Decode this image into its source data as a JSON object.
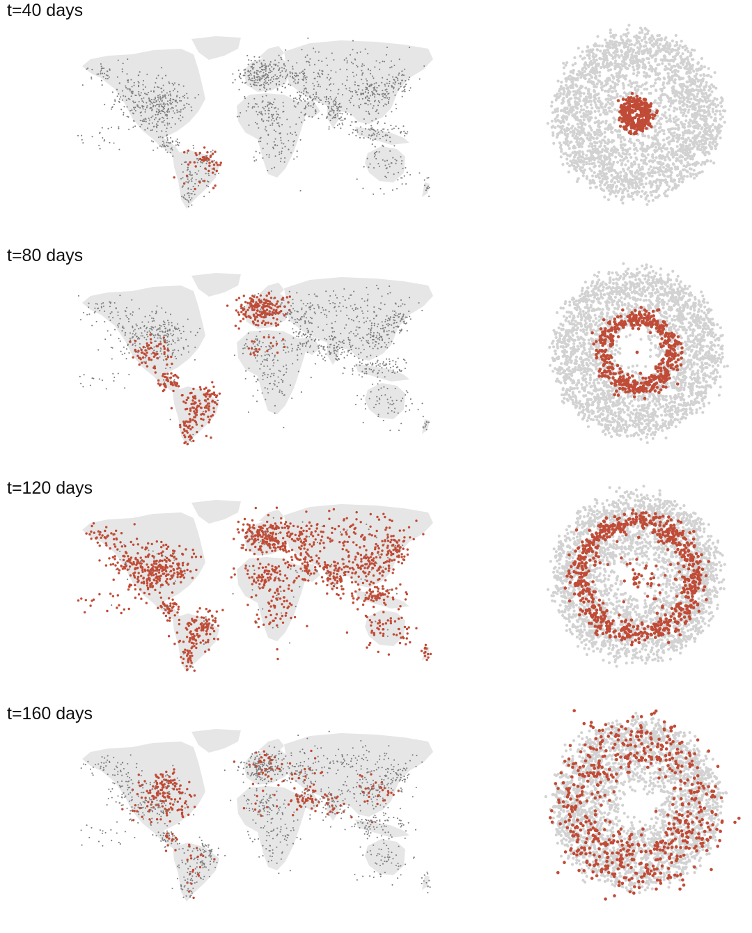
{
  "panels": [
    {
      "time_label": "t=40 days",
      "infected_fraction": 0.03,
      "network_ring_radius": 0.13,
      "network_center_infected": true
    },
    {
      "time_label": "t=80 days",
      "infected_fraction": 0.22,
      "network_ring_radius": 0.38,
      "network_center_infected": true
    },
    {
      "time_label": "t=120 days",
      "infected_fraction": 0.62,
      "network_ring_radius": 0.62,
      "network_center_infected": true
    },
    {
      "time_label": "t=160 days",
      "infected_fraction": 0.38,
      "network_ring_radius": 0.68,
      "network_center_infected": false
    }
  ],
  "colors": {
    "land": "#e6e6e6",
    "node": "#7d7d7d",
    "node_light": "#d2d2d2",
    "infected": "#c04b36",
    "label_text": "#111111"
  },
  "icons": {
    "map": "world-map-icon",
    "network": "radial-network-icon"
  }
}
